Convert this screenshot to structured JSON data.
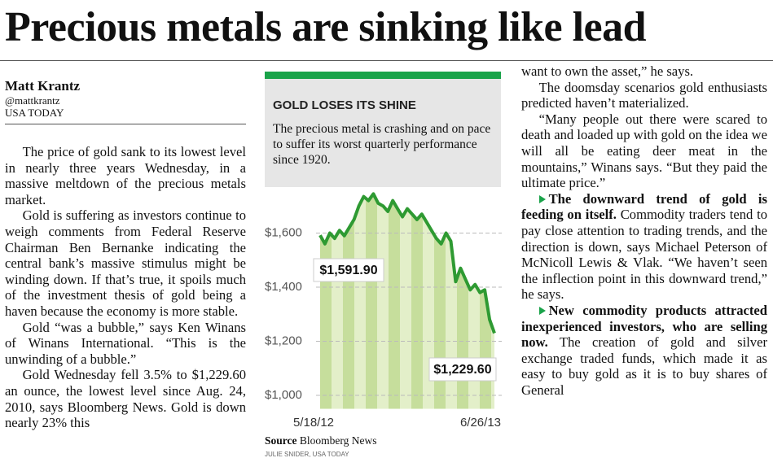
{
  "headline": "Precious metals are sinking like lead",
  "byline": {
    "author": "Matt Krantz",
    "handle": "@mattkrantz",
    "outlet": "USA TODAY"
  },
  "left_column": [
    "The price of gold sank to its lowest level in nearly three years Wednesday, in a massive meltdown of the precious metals market.",
    "Gold is suffering as investors continue to weigh comments from Federal Reserve Chairman Ben Bernanke indicating the central bank’s massive stimulus might be winding down. If that’s true, it spoils much of the investment thesis of gold being a haven because the economy is more stable.",
    "Gold “was a bubble,” says Ken Winans of Winans International. “This is the unwinding of a bubble.”",
    "Gold Wednesday fell 3.5% to $1,229.60 an ounce, the lowest level since Aug. 24, 2010, says Bloomberg News. Gold is down nearly 23% this"
  ],
  "right_column": [
    {
      "text": "want to own the asset,” he says."
    },
    {
      "text": "The doomsday scenarios gold enthusiasts predicted haven’t materialized."
    },
    {
      "text": "“Many people out there were scared to death and loaded up with gold on the idea we will all be eating deer meat in the mountains,” Winans says. “But they paid the ultimate price.”"
    },
    {
      "lead": "The downward trend of gold is feeding on itself.",
      "text": "Commodity traders tend to pay close attention to trading trends, and the direction is down, says Michael Peterson of McNicoll Lewis & Vlak. “We haven’t seen the inflection point in this downward trend,” he says."
    },
    {
      "lead": "New commodity products attracted inexperienced investors, who are selling now.",
      "text": "The creation of gold and silver exchange traded funds, which made it as easy to buy gold as it is to buy shares of General"
    }
  ],
  "chart_data": {
    "type": "line",
    "title": "GOLD LOSES ITS SHINE",
    "subtitle": "The precious metal is crashing and on pace to suffer its worst quarterly performance since 1920.",
    "categories": [
      "5/18/12",
      null,
      null,
      null,
      null,
      null,
      null,
      null,
      null,
      null,
      null,
      null,
      null,
      null,
      null,
      null,
      null,
      null,
      null,
      null,
      null,
      null,
      null,
      null,
      null,
      null,
      null,
      null,
      null,
      null,
      null,
      null,
      null,
      null,
      null,
      null,
      "6/26/13"
    ],
    "values": [
      1591.9,
      1560,
      1600,
      1580,
      1610,
      1590,
      1620,
      1650,
      1700,
      1735,
      1720,
      1745,
      1710,
      1700,
      1680,
      1720,
      1690,
      1660,
      1690,
      1670,
      1650,
      1670,
      1640,
      1610,
      1580,
      1560,
      1600,
      1570,
      1420,
      1470,
      1430,
      1390,
      1410,
      1380,
      1390,
      1280,
      1229.6
    ],
    "value_labels": [
      "$1,591.90",
      null,
      null,
      null,
      null,
      null,
      null,
      null,
      null,
      null,
      null,
      null,
      null,
      null,
      null,
      null,
      null,
      null,
      null,
      null,
      null,
      null,
      null,
      null,
      null,
      null,
      null,
      null,
      null,
      null,
      null,
      null,
      null,
      null,
      null,
      null,
      "$1,229.60"
    ],
    "color": "#2e9a32",
    "ylim": [
      950,
      1760
    ],
    "yticks": [
      {
        "value": 1000,
        "label": "$1,000"
      },
      {
        "value": 1200,
        "label": "$1,200"
      },
      {
        "value": 1400,
        "label": "$1,400"
      },
      {
        "value": 1600,
        "label": "$1,600"
      }
    ],
    "grid": true,
    "source": {
      "label": "Source",
      "name": "Bloomberg News"
    },
    "credit": "JULIE SNIDER, USA TODAY"
  }
}
